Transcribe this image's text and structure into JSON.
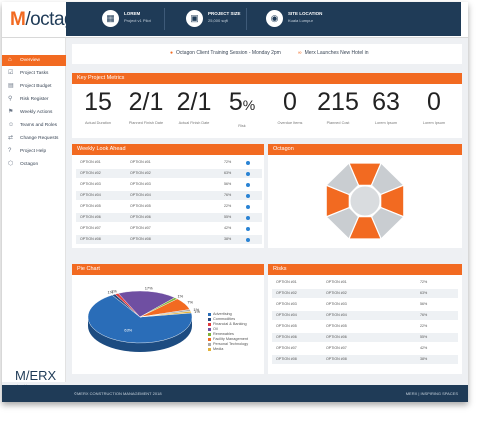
{
  "app": {
    "logo_prefix": "M",
    "logo_text": "/octagon",
    "brand_logo": "M/ERX",
    "brand_tagline": "inspiring spaces"
  },
  "header": {
    "items": [
      {
        "label": "LOREM",
        "value": "Project v1 Pilot",
        "icon": "building-icon"
      },
      {
        "label": "PROJECT SIZE",
        "value": "25,000 sqft",
        "icon": "size-icon"
      },
      {
        "label": "SITE LOCATION",
        "value": "Kuala Lumpur",
        "icon": "location-icon"
      }
    ]
  },
  "sidebar": {
    "items": [
      {
        "label": "Overview",
        "icon": "home-icon",
        "active": true
      },
      {
        "label": "Project Tasks",
        "icon": "tasks-icon"
      },
      {
        "label": "Project Budget",
        "icon": "budget-icon"
      },
      {
        "label": "Risk Register",
        "icon": "risk-icon"
      },
      {
        "label": "Weekly Actions",
        "icon": "actions-icon"
      },
      {
        "label": "Teams and Roles",
        "icon": "teams-icon"
      },
      {
        "label": "Change Requests",
        "icon": "change-icon"
      },
      {
        "label": "Project Help",
        "icon": "help-icon"
      },
      {
        "label": "Octagon",
        "icon": "octagon-icon"
      }
    ]
  },
  "news": {
    "items": [
      {
        "text": "Octagon Client Training Session - Monday 2pm"
      },
      {
        "text": "Merx Launches New Hotel in"
      }
    ]
  },
  "metrics": {
    "title": "Key Project Metrics",
    "items": [
      {
        "value": "15",
        "label": "Actual Duration"
      },
      {
        "value": "2/1",
        "label": "Planned Finish Date"
      },
      {
        "value": "2/1",
        "label": "Actual Finish Date"
      },
      {
        "value": "5",
        "suffix": "%",
        "label": "Risk"
      },
      {
        "value": "0",
        "label": "Overdue Items"
      },
      {
        "value": "215",
        "label": "Planned Cost"
      },
      {
        "value": "63",
        "label": "Lorem Ipsum"
      },
      {
        "value": "0",
        "label": "Lorem Ipsum"
      }
    ]
  },
  "weekly": {
    "title": "Weekly Look Ahead",
    "rows": [
      {
        "c1": "OPTION #01",
        "c2": "OPTION #01",
        "c3": "72%"
      },
      {
        "c1": "OPTION #02",
        "c2": "OPTION #02",
        "c3": "63%"
      },
      {
        "c1": "OPTION #03",
        "c2": "OPTION #03",
        "c3": "56%"
      },
      {
        "c1": "OPTION #04",
        "c2": "OPTION #04",
        "c3": "76%"
      },
      {
        "c1": "OPTION #05",
        "c2": "OPTION #05",
        "c3": "22%"
      },
      {
        "c1": "OPTION #06",
        "c2": "OPTION #06",
        "c3": "55%"
      },
      {
        "c1": "OPTION #07",
        "c2": "OPTION #07",
        "c3": "42%"
      },
      {
        "c1": "OPTION #08",
        "c2": "OPTION #08",
        "c3": "38%"
      }
    ]
  },
  "octagon": {
    "title": "Octagon"
  },
  "pie": {
    "title": "Pie Chart",
    "legend": [
      {
        "label": "Advertising",
        "color": "#2a6db8"
      },
      {
        "label": "Commodities",
        "color": "#2b4a7e"
      },
      {
        "label": "Financial & Banking",
        "color": "#e23b3b"
      },
      {
        "label": "Oil",
        "color": "#6f4fa2"
      },
      {
        "label": "Renewables",
        "color": "#7fb23a"
      },
      {
        "label": "Facility Management",
        "color": "#f26a21"
      },
      {
        "label": "Personal Technology",
        "color": "#a8a8a8"
      },
      {
        "label": "Media",
        "color": "#e3b23c"
      }
    ]
  },
  "chart_data": {
    "type": "pie",
    "categories": [
      "Advertising",
      "Commodities",
      "Financial & Banking",
      "Oil",
      "Renewables",
      "Facility Management",
      "Personal Technology",
      "Media"
    ],
    "values": [
      63,
      1,
      1,
      17,
      1,
      7,
      1,
      1
    ],
    "slice_labels": [
      "63%",
      "1%",
      "1%",
      "17%",
      "1%",
      "7%",
      "1%",
      "1%"
    ],
    "title": "Pie Chart",
    "legend_position": "right"
  },
  "risks": {
    "title": "Risks",
    "rows": [
      {
        "c1": "OPTION #01",
        "c2": "OPTION #01",
        "c3": "72%"
      },
      {
        "c1": "OPTION #02",
        "c2": "OPTION #02",
        "c3": "63%"
      },
      {
        "c1": "OPTION #03",
        "c2": "OPTION #03",
        "c3": "56%"
      },
      {
        "c1": "OPTION #04",
        "c2": "OPTION #04",
        "c3": "76%"
      },
      {
        "c1": "OPTION #05",
        "c2": "OPTION #05",
        "c3": "22%"
      },
      {
        "c1": "OPTION #06",
        "c2": "OPTION #06",
        "c3": "55%"
      },
      {
        "c1": "OPTION #07",
        "c2": "OPTION #07",
        "c3": "42%"
      },
      {
        "c1": "OPTION #08",
        "c2": "OPTION #08",
        "c3": "38%"
      }
    ]
  },
  "footer": {
    "left": "©MERX CONSTRUCTION MANAGEMENT 2018",
    "right": "MERX | INSPIRING SPACES"
  }
}
